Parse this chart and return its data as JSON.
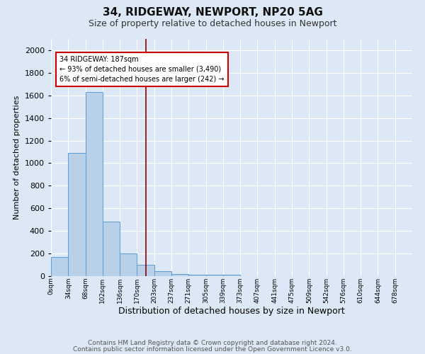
{
  "title1": "34, RIDGEWAY, NEWPORT, NP20 5AG",
  "title2": "Size of property relative to detached houses in Newport",
  "xlabel": "Distribution of detached houses by size in Newport",
  "ylabel": "Number of detached properties",
  "footer1": "Contains HM Land Registry data © Crown copyright and database right 2024.",
  "footer2": "Contains public sector information licensed under the Open Government Licence v3.0.",
  "bin_labels": [
    "0sqm",
    "34sqm",
    "68sqm",
    "102sqm",
    "136sqm",
    "170sqm",
    "203sqm",
    "237sqm",
    "271sqm",
    "305sqm",
    "339sqm",
    "373sqm",
    "407sqm",
    "441sqm",
    "475sqm",
    "509sqm",
    "542sqm",
    "576sqm",
    "610sqm",
    "644sqm",
    "678sqm"
  ],
  "bar_values": [
    170,
    1090,
    1630,
    480,
    200,
    100,
    45,
    20,
    10,
    10,
    10,
    0,
    0,
    0,
    0,
    0,
    0,
    0,
    0,
    0
  ],
  "bar_color": "#b8d0e8",
  "bar_edge_color": "#5b9bd5",
  "vline_x_idx": 5.5,
  "vline_color": "#8b0000",
  "annotation_text": "34 RIDGEWAY: 187sqm\n← 93% of detached houses are smaller (3,490)\n6% of semi-detached houses are larger (242) →",
  "annotation_box_color": "#ffffff",
  "annotation_box_edge": "#cc0000",
  "ylim": [
    0,
    2100
  ],
  "yticks": [
    0,
    200,
    400,
    600,
    800,
    1000,
    1200,
    1400,
    1600,
    1800,
    2000
  ],
  "background_color": "#dce8f5",
  "plot_background": "#dce8f5",
  "grid_color": "#ffffff",
  "title1_fontsize": 11,
  "title2_fontsize": 9,
  "xlabel_fontsize": 9,
  "ylabel_fontsize": 8,
  "footer_fontsize": 6.5,
  "annotation_fontsize": 7,
  "bin_width": 1
}
